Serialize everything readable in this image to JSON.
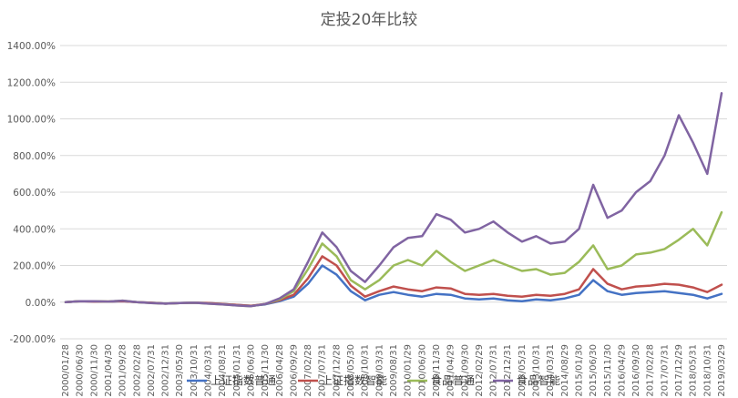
{
  "chart_data": {
    "type": "line",
    "title": "定投20年比较",
    "xlabel": "",
    "ylabel": "",
    "ylim": [
      -200,
      1400
    ],
    "y_ticks": [
      -200,
      0,
      200,
      400,
      600,
      800,
      1000,
      1200,
      1400
    ],
    "y_tick_labels": [
      "-200.00%",
      "0.00%",
      "200.00%",
      "400.00%",
      "600.00%",
      "800.00%",
      "1000.00%",
      "1200.00%",
      "1400.00%"
    ],
    "grid": true,
    "legend_position": "bottom",
    "x_tick_labels": [
      "2000/01/28",
      "2000/06/30",
      "2000/11/30",
      "2001/04/30",
      "2001/09/28",
      "2002/02/28",
      "2002/07/31",
      "2002/12/31",
      "2003/05/30",
      "2003/10/31",
      "2004/03/31",
      "2004/08/31",
      "2005/01/31",
      "2005/06/30",
      "2005/11/30",
      "2006/04/28",
      "2006/09/29",
      "2007/02/28",
      "2007/07/31",
      "2007/12/28",
      "2008/05/30",
      "2008/10/31",
      "2009/03/31",
      "2009/08/31",
      "2010/01/29",
      "2010/06/30",
      "2010/11/30",
      "2011/04/29",
      "2011/09/30",
      "2012/02/29",
      "2012/07/31",
      "2012/12/31",
      "2013/05/31",
      "2013/10/31",
      "2014/03/31",
      "2014/08/29",
      "2015/01/30",
      "2015/06/30",
      "2015/11/30",
      "2016/04/29",
      "2016/09/30",
      "2017/02/28",
      "2017/07/31",
      "2017/12/29",
      "2018/05/31",
      "2018/10/31",
      "2019/03/29"
    ],
    "series": [
      {
        "name": "上证指数普通",
        "color": "#4472C4",
        "values": [
          0,
          5,
          3,
          2,
          5,
          0,
          -3,
          -8,
          -5,
          -3,
          -5,
          -10,
          -15,
          -20,
          -12,
          5,
          30,
          100,
          200,
          150,
          60,
          10,
          40,
          55,
          40,
          30,
          45,
          40,
          20,
          15,
          20,
          10,
          5,
          15,
          10,
          20,
          40,
          120,
          60,
          40,
          50,
          55,
          60,
          50,
          40,
          20,
          45
        ]
      },
      {
        "name": "上证指数智能",
        "color": "#C0504D",
        "values": [
          0,
          5,
          3,
          3,
          5,
          0,
          -3,
          -8,
          -5,
          -3,
          -5,
          -10,
          -15,
          -20,
          -10,
          10,
          40,
          130,
          250,
          200,
          90,
          30,
          60,
          85,
          70,
          60,
          80,
          75,
          45,
          40,
          45,
          35,
          30,
          40,
          35,
          45,
          70,
          180,
          100,
          70,
          85,
          90,
          100,
          95,
          80,
          55,
          95
        ]
      },
      {
        "name": "食品普通",
        "color": "#9BBB59",
        "values": [
          0,
          5,
          5,
          3,
          8,
          0,
          -5,
          -8,
          -5,
          -3,
          -8,
          -12,
          -18,
          -22,
          -10,
          15,
          60,
          180,
          320,
          250,
          120,
          70,
          120,
          200,
          230,
          200,
          280,
          220,
          170,
          200,
          230,
          200,
          170,
          180,
          150,
          160,
          220,
          310,
          180,
          200,
          260,
          270,
          290,
          340,
          400,
          310,
          490
        ]
      },
      {
        "name": "食品智能",
        "color": "#8064A2",
        "values": [
          0,
          5,
          5,
          3,
          8,
          0,
          -5,
          -8,
          -5,
          -3,
          -8,
          -12,
          -18,
          -22,
          -10,
          20,
          70,
          220,
          380,
          300,
          170,
          110,
          200,
          300,
          350,
          360,
          480,
          450,
          380,
          400,
          440,
          380,
          330,
          360,
          320,
          330,
          400,
          640,
          460,
          500,
          600,
          660,
          800,
          1020,
          870,
          700,
          1140
        ]
      }
    ]
  }
}
